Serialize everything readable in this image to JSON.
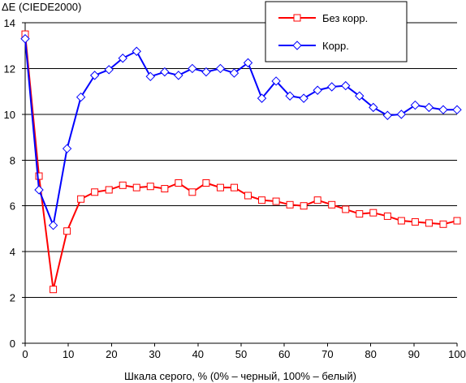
{
  "chart_data": {
    "type": "line",
    "title": "",
    "ylabel": "ΔE (CIEDE2000)",
    "xlabel": "Шкала серого, % (0% – черный, 100% – белый)",
    "xlim": [
      0,
      100
    ],
    "ylim": [
      0,
      14
    ],
    "xticks": [
      "0",
      "10",
      "20",
      "30",
      "40",
      "50",
      "60",
      "70",
      "80",
      "90",
      "100"
    ],
    "yticks": [
      "0",
      "2",
      "4",
      "6",
      "8",
      "10",
      "12",
      "14"
    ],
    "grid": "horizontal",
    "legend_position": "top-right",
    "x": [
      0,
      3.2,
      6.5,
      9.7,
      12.9,
      16.1,
      19.4,
      22.6,
      25.8,
      29.0,
      32.3,
      35.5,
      38.7,
      41.9,
      45.2,
      48.4,
      51.6,
      54.8,
      58.1,
      61.3,
      64.5,
      67.7,
      71.0,
      74.2,
      77.4,
      80.6,
      83.9,
      87.1,
      90.3,
      93.5,
      96.8,
      100
    ],
    "series": [
      {
        "name": "Без корр.",
        "color": "#ff0000",
        "marker": "square",
        "values": [
          13.5,
          7.3,
          2.35,
          4.9,
          6.3,
          6.6,
          6.7,
          6.9,
          6.8,
          6.85,
          6.75,
          7.0,
          6.6,
          7.0,
          6.8,
          6.8,
          6.45,
          6.25,
          6.2,
          6.05,
          6.0,
          6.25,
          6.05,
          5.85,
          5.65,
          5.7,
          5.55,
          5.35,
          5.3,
          5.25,
          5.2,
          5.35
        ]
      },
      {
        "name": "Корр.",
        "color": "#0000ff",
        "marker": "diamond",
        "values": [
          13.3,
          6.7,
          5.15,
          8.5,
          10.75,
          11.7,
          11.95,
          12.45,
          12.75,
          11.65,
          11.85,
          11.7,
          12.0,
          11.85,
          12.0,
          11.8,
          12.25,
          10.7,
          11.45,
          10.8,
          10.7,
          11.05,
          11.2,
          11.25,
          10.8,
          10.3,
          9.95,
          10.0,
          10.4,
          10.3,
          10.2,
          10.2
        ]
      }
    ]
  }
}
